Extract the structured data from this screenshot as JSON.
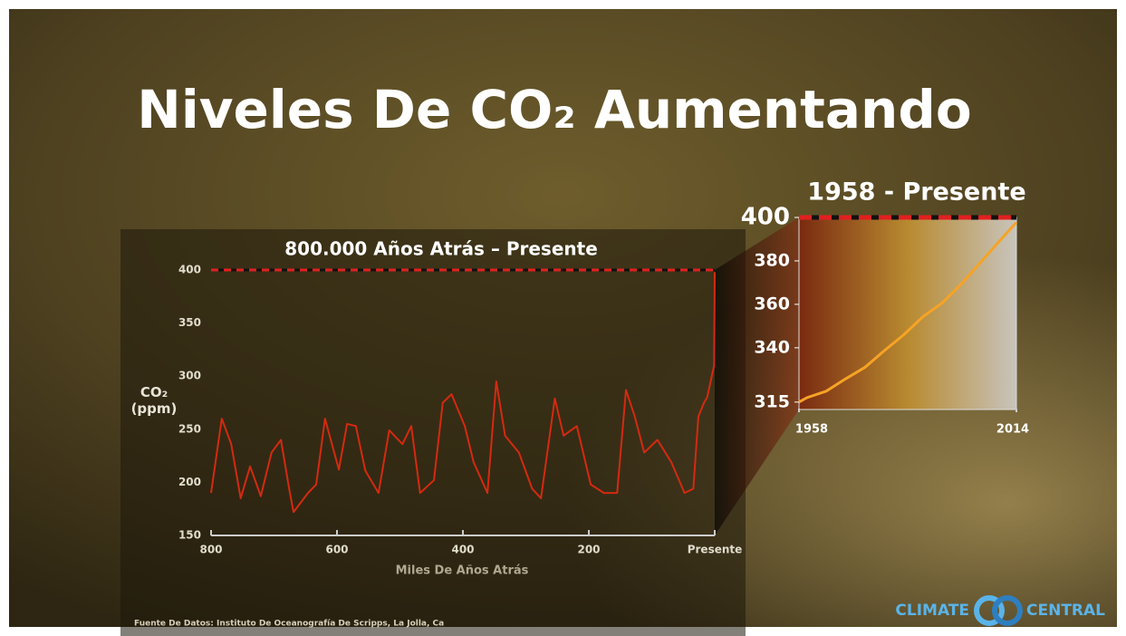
{
  "title": "Niveles De CO₂ Aumentando",
  "source": "Fuente De Datos: Instituto De Oceanografía De Scripps, La Jolla, Ca",
  "logo": {
    "left": "CLIMATE",
    "right": "CENTRAL"
  },
  "chart_data": [
    {
      "type": "line",
      "title": "800.000 Años Atrás – Presente",
      "x_label": "Miles De Años Atrás",
      "y_label": "CO₂ (ppm)",
      "xlim": [
        800,
        0
      ],
      "xticks": [
        800,
        600,
        400,
        200,
        {
          "value": 0,
          "label": "Presente"
        }
      ],
      "ylim": [
        150,
        400
      ],
      "yticks": [
        150,
        200,
        250,
        300,
        350,
        400
      ],
      "reference_line": 400,
      "x": [
        800,
        783,
        768,
        753,
        738,
        721,
        704,
        689,
        676,
        669,
        646,
        633,
        619,
        597,
        584,
        570,
        555,
        534,
        517,
        496,
        482,
        468,
        446,
        432,
        418,
        397,
        383,
        361,
        347,
        333,
        311,
        290,
        276,
        254,
        240,
        219,
        197,
        176,
        155,
        141,
        127,
        112,
        91,
        69,
        48,
        34,
        26,
        17,
        12,
        1,
        0
      ],
      "series": [
        {
          "color": "#d42a10",
          "values": [
            190,
            260,
            236,
            185,
            215,
            187,
            228,
            240,
            194,
            172,
            190,
            198,
            260,
            212,
            255,
            253,
            211,
            190,
            249,
            236,
            253,
            190,
            202,
            275,
            283,
            253,
            219,
            190,
            295,
            244,
            228,
            194,
            185,
            279,
            244,
            253,
            198,
            190,
            190,
            287,
            262,
            228,
            240,
            219,
            190,
            194,
            262,
            275,
            280,
            310,
            398
          ]
        }
      ]
    },
    {
      "type": "line",
      "title": "1958 - Presente",
      "xlim": [
        1958,
        2014
      ],
      "xticks": [
        1958,
        2014
      ],
      "ylim": [
        312,
        400
      ],
      "yticks": [
        315,
        340,
        360,
        380,
        400
      ],
      "reference_line": 400,
      "x": [
        1958,
        1960,
        1965,
        1970,
        1975,
        1980,
        1985,
        1990,
        1995,
        2000,
        2005,
        2010,
        2014
      ],
      "series": [
        {
          "color": "#f7a324",
          "values": [
            315,
            317,
            320,
            325.7,
            331,
            338.7,
            346,
            354.4,
            360.8,
            369.7,
            379.8,
            389.9,
            397.7
          ]
        }
      ]
    }
  ]
}
